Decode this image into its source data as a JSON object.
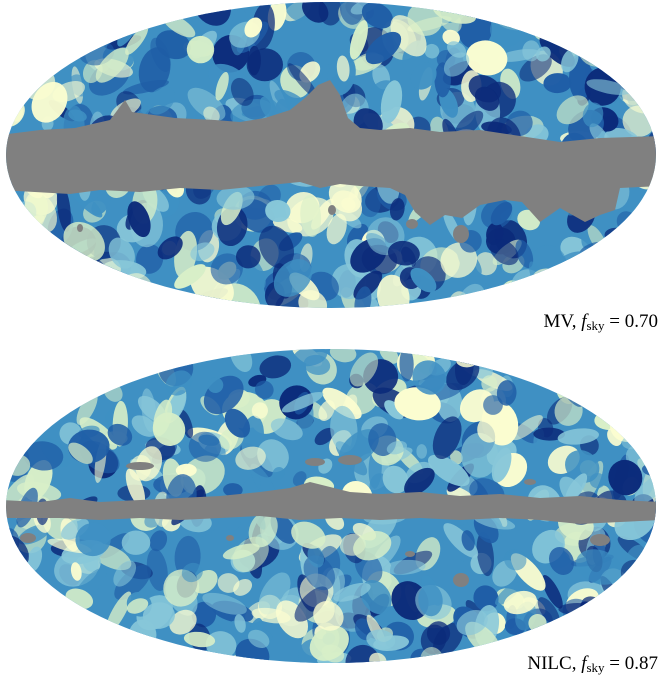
{
  "colors": {
    "mask": "#808080",
    "palette": [
      "#0b2a7a",
      "#1f5da6",
      "#3f90c3",
      "#88c7d9",
      "#d8efc8",
      "#fbfdd0"
    ]
  },
  "maps": [
    {
      "method": "MV",
      "fsky_symbol": "f",
      "fsky_subscript": "sky",
      "fsky_value": "0.70",
      "mask_fraction_masked": 0.3
    },
    {
      "method": "NILC",
      "fsky_symbol": "f",
      "fsky_subscript": "sky",
      "fsky_value": "0.87",
      "mask_fraction_masked": 0.13
    }
  ]
}
